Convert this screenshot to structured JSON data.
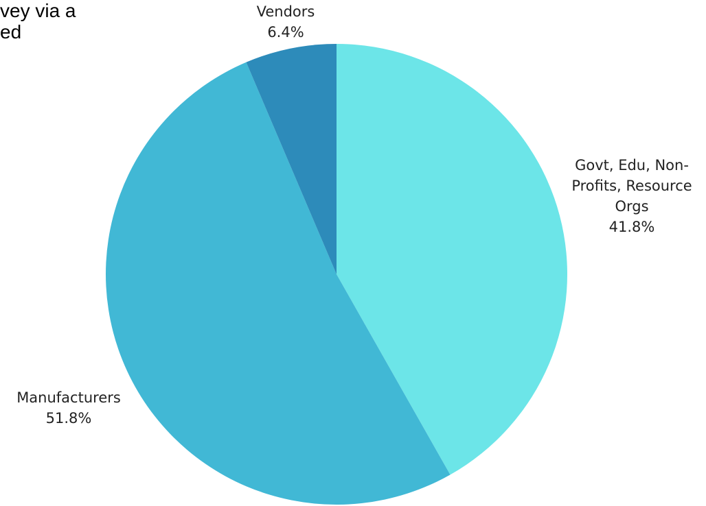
{
  "background_text": {
    "lines": [
      "vey via a",
      "ed"
    ]
  },
  "chart_data": {
    "type": "pie",
    "start_angle_deg": 0,
    "direction": "clockwise",
    "slices": [
      {
        "label_lines": [
          "Govt, Edu, Non-",
          "Profits, Resource",
          "Orgs"
        ],
        "value": 41.8,
        "value_label": "41.8%",
        "color": "#6CE5E8"
      },
      {
        "label_lines": [
          "Manufacturers"
        ],
        "value": 51.8,
        "value_label": "51.8%",
        "color": "#41B8D5"
      },
      {
        "label_lines": [
          "Vendors"
        ],
        "value": 6.4,
        "value_label": "6.4%",
        "color": "#2D8BBA"
      }
    ]
  }
}
